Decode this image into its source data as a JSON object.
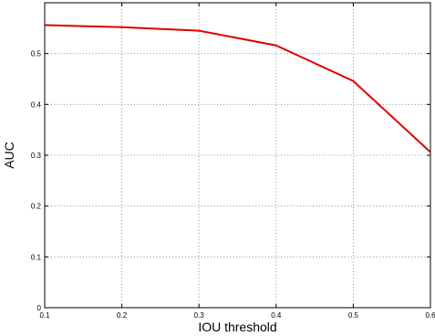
{
  "chart_data": {
    "type": "line",
    "title": "",
    "xlabel": "IOU threshold",
    "ylabel": "AUC",
    "xlim": [
      0.1,
      0.6
    ],
    "ylim": [
      0,
      0.6
    ],
    "x_ticks": [
      0.1,
      0.2,
      0.3,
      0.4,
      0.5,
      0.6
    ],
    "x_tick_labels": [
      "0.1",
      "0.2",
      "0.3",
      "0.4",
      "0.5",
      "0.6"
    ],
    "y_ticks": [
      0,
      0.1,
      0.2,
      0.3,
      0.4,
      0.5
    ],
    "y_tick_labels": [
      "0",
      "0.1",
      "0.2",
      "0.3",
      "0.4",
      "0.5"
    ],
    "grid": true,
    "grid_style": "dotted",
    "legend": "none",
    "series": [
      {
        "color": "#e00000",
        "x": [
          0.1,
          0.2,
          0.3,
          0.4,
          0.5,
          0.6
        ],
        "y": [
          0.556,
          0.552,
          0.545,
          0.516,
          0.446,
          0.306
        ]
      }
    ]
  }
}
